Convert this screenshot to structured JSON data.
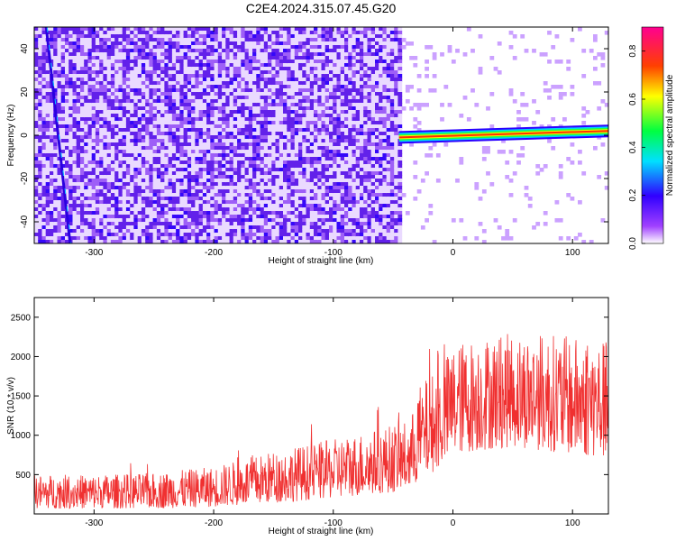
{
  "figure": {
    "title": "C2E4.2024.315.07.45.G20"
  },
  "chart_data": [
    {
      "type": "heatmap",
      "xlabel": "Height of straight line (km)",
      "ylabel": "Frequency (Hz)",
      "xlim": [
        -350,
        130
      ],
      "ylim": [
        -50,
        50
      ],
      "xticks": [
        -300,
        -200,
        -100,
        0,
        100
      ],
      "yticks": [
        -40,
        -20,
        0,
        20,
        40
      ],
      "grid": false,
      "colorbar": {
        "label": "Normalized spectral amplitude",
        "range": [
          0,
          0.9
        ],
        "ticks": [
          "0.0",
          "0.2",
          "0.4",
          "0.6",
          "0.8"
        ],
        "colormap": "rainbow (white-violet-blue-cyan-green-yellow-red-magenta)"
      },
      "features": {
        "noise_region_x": [
          -350,
          -45
        ],
        "noise_amplitude": 0.15,
        "tone_x": [
          -45,
          130
        ],
        "tone_frequency_start": -1,
        "tone_frequency_end": 2,
        "tone_amplitude": 0.85,
        "diagonal_streak": {
          "x_start": -340,
          "f_start": 50,
          "x_end": -320,
          "f_end": -50
        }
      }
    },
    {
      "type": "line",
      "xlabel": "Height of straight line (km)",
      "ylabel": "SNR (10 * v/v)",
      "xlim": [
        -350,
        130
      ],
      "ylim": [
        0,
        2750
      ],
      "xticks": [
        -300,
        -200,
        -100,
        0,
        100
      ],
      "yticks": [
        500,
        1000,
        1500,
        2000,
        2500
      ],
      "series_color": "#f03030",
      "envelope": {
        "x": [
          -350,
          -300,
          -250,
          -200,
          -150,
          -100,
          -60,
          -35,
          -30,
          -10,
          0,
          20,
          50,
          80,
          100,
          130
        ],
        "low": [
          70,
          70,
          70,
          90,
          140,
          200,
          260,
          300,
          400,
          600,
          750,
          800,
          850,
          800,
          750,
          700
        ],
        "high": [
          500,
          500,
          520,
          600,
          800,
          950,
          1100,
          1200,
          1600,
          1900,
          2150,
          2250,
          2300,
          2300,
          2250,
          2200
        ]
      }
    }
  ],
  "colors": {
    "noise": "#6a1ee0",
    "signal": "#f03030"
  }
}
